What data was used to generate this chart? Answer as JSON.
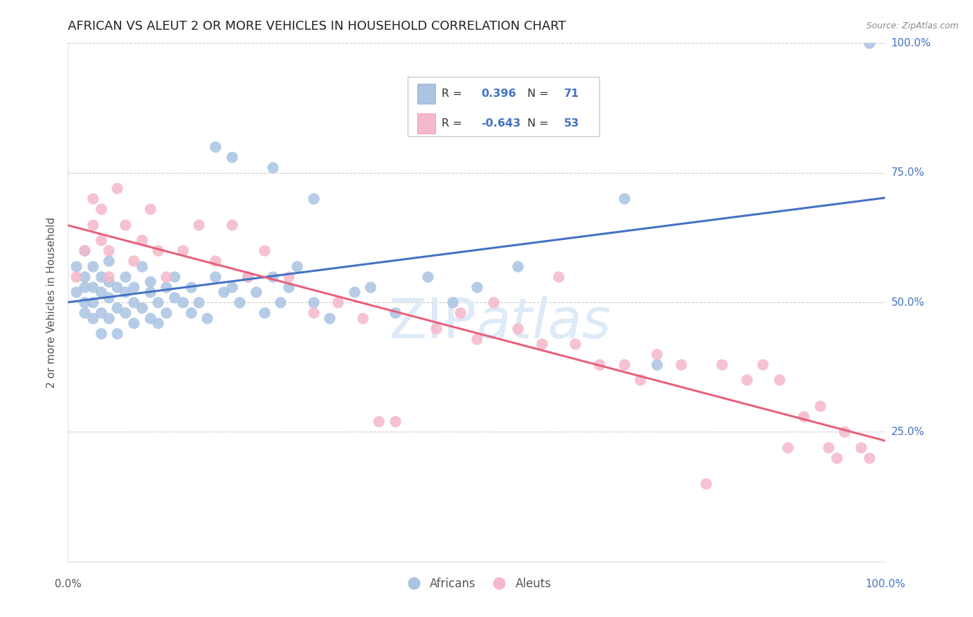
{
  "title": "AFRICAN VS ALEUT 2 OR MORE VEHICLES IN HOUSEHOLD CORRELATION CHART",
  "source": "Source: ZipAtlas.com",
  "ylabel": "2 or more Vehicles in Household",
  "xmin": 0.0,
  "xmax": 1.0,
  "ymin": 0.0,
  "ymax": 1.0,
  "african_R": 0.396,
  "african_N": 71,
  "aleut_R": -0.643,
  "aleut_N": 53,
  "african_color": "#aac4e2",
  "aleut_color": "#f5b8cb",
  "african_line_color": "#4472c4",
  "aleut_line_color": "#e8607a",
  "title_fontsize": 13,
  "axis_label_fontsize": 11,
  "tick_fontsize": 11,
  "legend_color": "#4472c4",
  "watermark_color": "#ddeaf8",
  "background_color": "#ffffff",
  "african_x": [
    0.01,
    0.01,
    0.02,
    0.02,
    0.02,
    0.02,
    0.02,
    0.03,
    0.03,
    0.03,
    0.03,
    0.04,
    0.04,
    0.04,
    0.04,
    0.05,
    0.05,
    0.05,
    0.05,
    0.06,
    0.06,
    0.06,
    0.07,
    0.07,
    0.07,
    0.08,
    0.08,
    0.08,
    0.09,
    0.09,
    0.1,
    0.1,
    0.1,
    0.11,
    0.11,
    0.12,
    0.12,
    0.13,
    0.13,
    0.14,
    0.15,
    0.15,
    0.16,
    0.17,
    0.18,
    0.19,
    0.2,
    0.21,
    0.22,
    0.23,
    0.24,
    0.25,
    0.26,
    0.27,
    0.28,
    0.3,
    0.32,
    0.35,
    0.37,
    0.4,
    0.44,
    0.47,
    0.5,
    0.18,
    0.2,
    0.25,
    0.3,
    0.55,
    0.68,
    0.72,
    0.98
  ],
  "african_y": [
    0.52,
    0.57,
    0.48,
    0.53,
    0.5,
    0.55,
    0.6,
    0.5,
    0.47,
    0.53,
    0.57,
    0.52,
    0.48,
    0.55,
    0.44,
    0.51,
    0.47,
    0.54,
    0.58,
    0.49,
    0.53,
    0.44,
    0.52,
    0.48,
    0.55,
    0.5,
    0.46,
    0.53,
    0.49,
    0.57,
    0.52,
    0.47,
    0.54,
    0.5,
    0.46,
    0.53,
    0.48,
    0.55,
    0.51,
    0.5,
    0.48,
    0.53,
    0.5,
    0.47,
    0.55,
    0.52,
    0.53,
    0.5,
    0.55,
    0.52,
    0.48,
    0.55,
    0.5,
    0.53,
    0.57,
    0.5,
    0.47,
    0.52,
    0.53,
    0.48,
    0.55,
    0.5,
    0.53,
    0.8,
    0.78,
    0.76,
    0.7,
    0.57,
    0.7,
    0.38,
    1.0
  ],
  "aleut_x": [
    0.01,
    0.02,
    0.03,
    0.03,
    0.04,
    0.04,
    0.05,
    0.05,
    0.06,
    0.07,
    0.08,
    0.09,
    0.1,
    0.11,
    0.12,
    0.14,
    0.16,
    0.18,
    0.2,
    0.22,
    0.24,
    0.27,
    0.3,
    0.33,
    0.36,
    0.38,
    0.4,
    0.45,
    0.48,
    0.5,
    0.52,
    0.55,
    0.58,
    0.6,
    0.62,
    0.65,
    0.68,
    0.7,
    0.72,
    0.75,
    0.78,
    0.8,
    0.83,
    0.85,
    0.87,
    0.88,
    0.9,
    0.92,
    0.93,
    0.94,
    0.95,
    0.97,
    0.98
  ],
  "aleut_y": [
    0.55,
    0.6,
    0.65,
    0.7,
    0.62,
    0.68,
    0.6,
    0.55,
    0.72,
    0.65,
    0.58,
    0.62,
    0.68,
    0.6,
    0.55,
    0.6,
    0.65,
    0.58,
    0.65,
    0.55,
    0.6,
    0.55,
    0.48,
    0.5,
    0.47,
    0.27,
    0.27,
    0.45,
    0.48,
    0.43,
    0.5,
    0.45,
    0.42,
    0.55,
    0.42,
    0.38,
    0.38,
    0.35,
    0.4,
    0.38,
    0.15,
    0.38,
    0.35,
    0.38,
    0.35,
    0.22,
    0.28,
    0.3,
    0.22,
    0.2,
    0.25,
    0.22,
    0.2
  ]
}
